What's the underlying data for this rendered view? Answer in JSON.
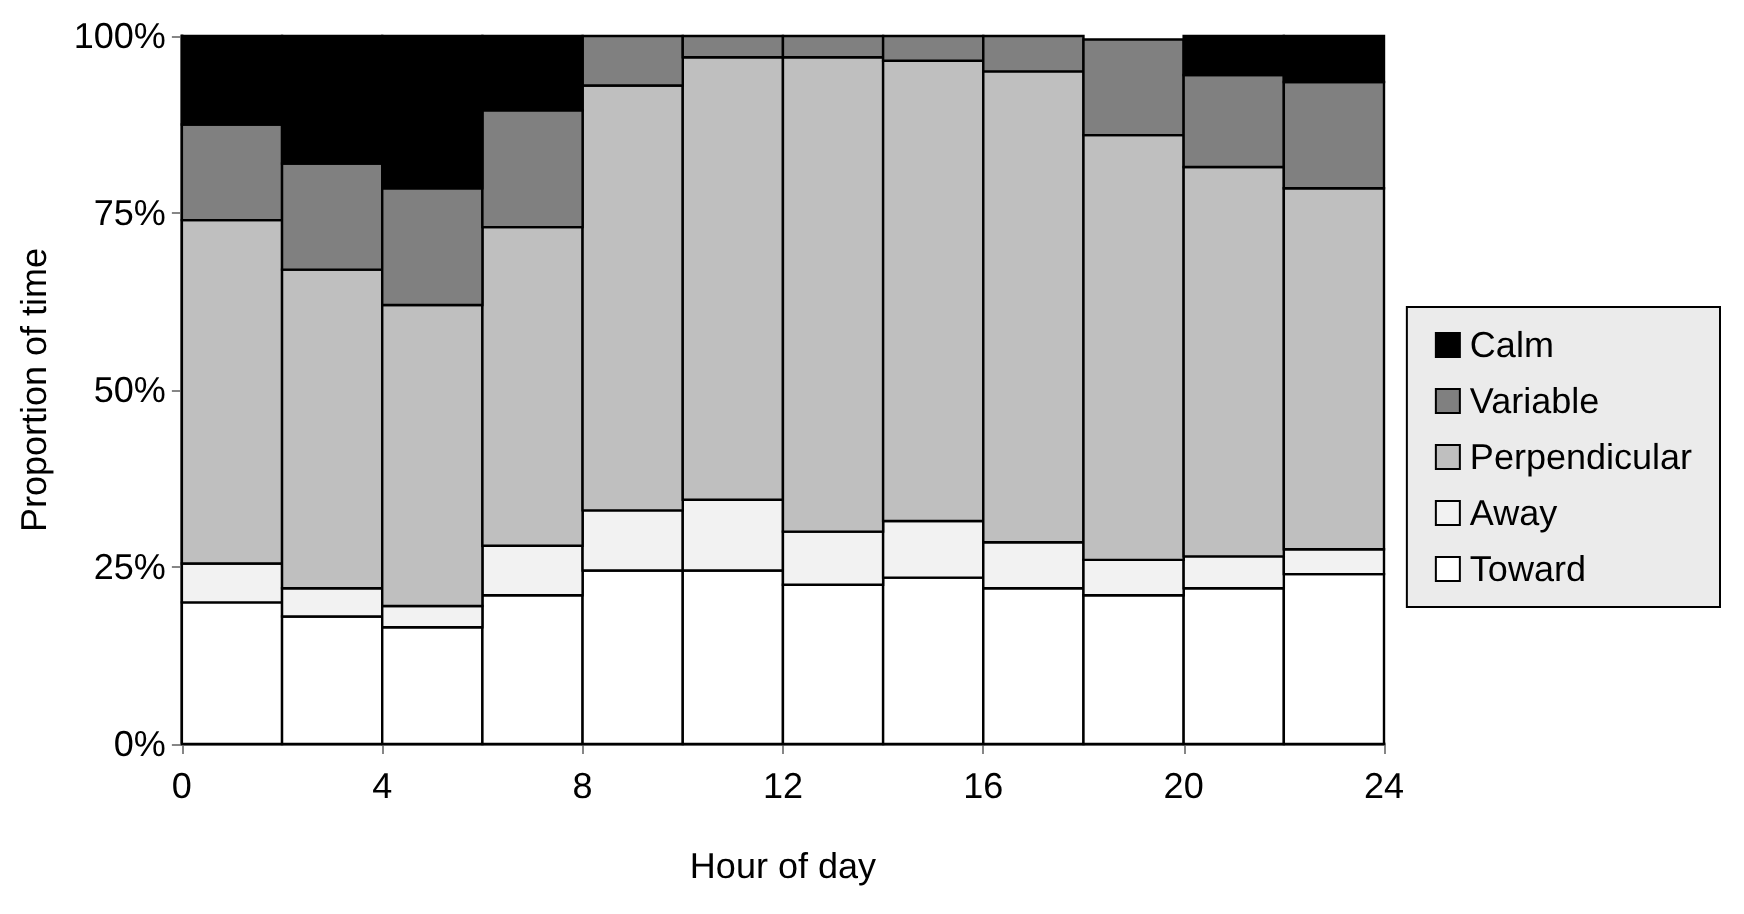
{
  "chart_data": {
    "type": "bar",
    "stacked": true,
    "xlabel": "Hour of day",
    "ylabel": "Proportion of time",
    "x": [
      1,
      3,
      5,
      7,
      9,
      11,
      13,
      15,
      17,
      19,
      21,
      23
    ],
    "xlim": [
      0,
      24
    ],
    "xticks": [
      0,
      4,
      8,
      12,
      16,
      20,
      24
    ],
    "ylim": [
      0,
      100
    ],
    "yticks": [
      {
        "value": 0,
        "label": "0%"
      },
      {
        "value": 25,
        "label": "25%"
      },
      {
        "value": 50,
        "label": "50%"
      },
      {
        "value": 75,
        "label": "75%"
      },
      {
        "value": 100,
        "label": "100%"
      }
    ],
    "legend": "right",
    "grid": false,
    "series": [
      {
        "name": "Toward",
        "color": "#ffffff",
        "values": [
          20,
          18,
          16.5,
          21,
          24.5,
          24.5,
          22.5,
          23.5,
          22,
          21,
          22,
          24
        ]
      },
      {
        "name": "Away",
        "color": "#f2f2f2",
        "values": [
          5.5,
          4,
          3,
          7,
          8.5,
          10,
          7.5,
          8,
          6.5,
          5,
          4.5,
          3.5
        ]
      },
      {
        "name": "Perpendicular",
        "color": "#bfbfbf",
        "values": [
          48.5,
          45,
          42.5,
          45,
          60,
          62.5,
          67,
          65,
          66.5,
          60,
          55,
          51
        ]
      },
      {
        "name": "Variable",
        "color": "#808080",
        "values": [
          13.5,
          15,
          16.5,
          16.5,
          7,
          3,
          3,
          3.5,
          5,
          13.5,
          13,
          15
        ]
      },
      {
        "name": "Calm",
        "color": "#000000",
        "values": [
          12.5,
          18,
          21.5,
          10.5,
          0,
          0,
          0,
          0,
          0,
          0,
          5.5,
          6.5
        ]
      }
    ]
  }
}
